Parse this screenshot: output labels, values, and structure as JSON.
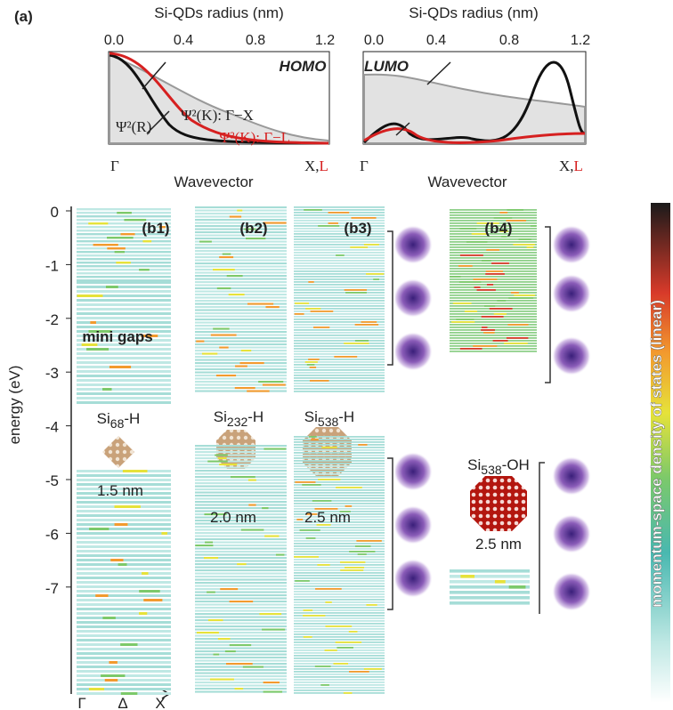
{
  "panel_a": {
    "label": "(a)",
    "left": {
      "axis_title": "Si-QDs radius (nm)",
      "ticks": [
        "0.0",
        "0.4",
        "0.8",
        "1.2"
      ],
      "state": "HOMO",
      "curve_labels": [
        "Ψ²(R)",
        "Ψ²(K): Γ−X",
        "Ψ²(K): Γ−L"
      ],
      "k_start": "Γ",
      "k_end": "X,",
      "k_end_red": "L",
      "x_title": "Wavevector"
    },
    "right": {
      "axis_title": "Si-QDs radius (nm)",
      "ticks": [
        "0.0",
        "0.4",
        "0.8",
        "1.2"
      ],
      "state": "LUMO",
      "k_start": "Γ",
      "k_end": "X,",
      "k_end_red": "L",
      "x_title": "Wavevector"
    }
  },
  "panel_b": {
    "y_title": "energy (eV)",
    "yticks": [
      "0",
      "-1",
      "-2",
      "-3",
      "-4",
      "-5",
      "-6",
      "-7"
    ],
    "panels": [
      "(b1)",
      "(b2)",
      "(b3)",
      "(b4)"
    ],
    "mini_gaps": "mini gaps",
    "clusters": [
      {
        "base": "Si",
        "sub": "68",
        "suffix": "-H",
        "size": "1.5 nm"
      },
      {
        "base": "Si",
        "sub": "232",
        "suffix": "-H",
        "size": "2.0 nm"
      },
      {
        "base": "Si",
        "sub": "538",
        "suffix": "-H",
        "size": "2.5 nm"
      },
      {
        "base": "Si",
        "sub": "538",
        "suffix": "-OH",
        "size": "2.5 nm"
      }
    ],
    "k_labels": [
      "Γ",
      "Δ",
      "X"
    ]
  },
  "colorbar_label": "momentum-space density of states (linear)"
}
